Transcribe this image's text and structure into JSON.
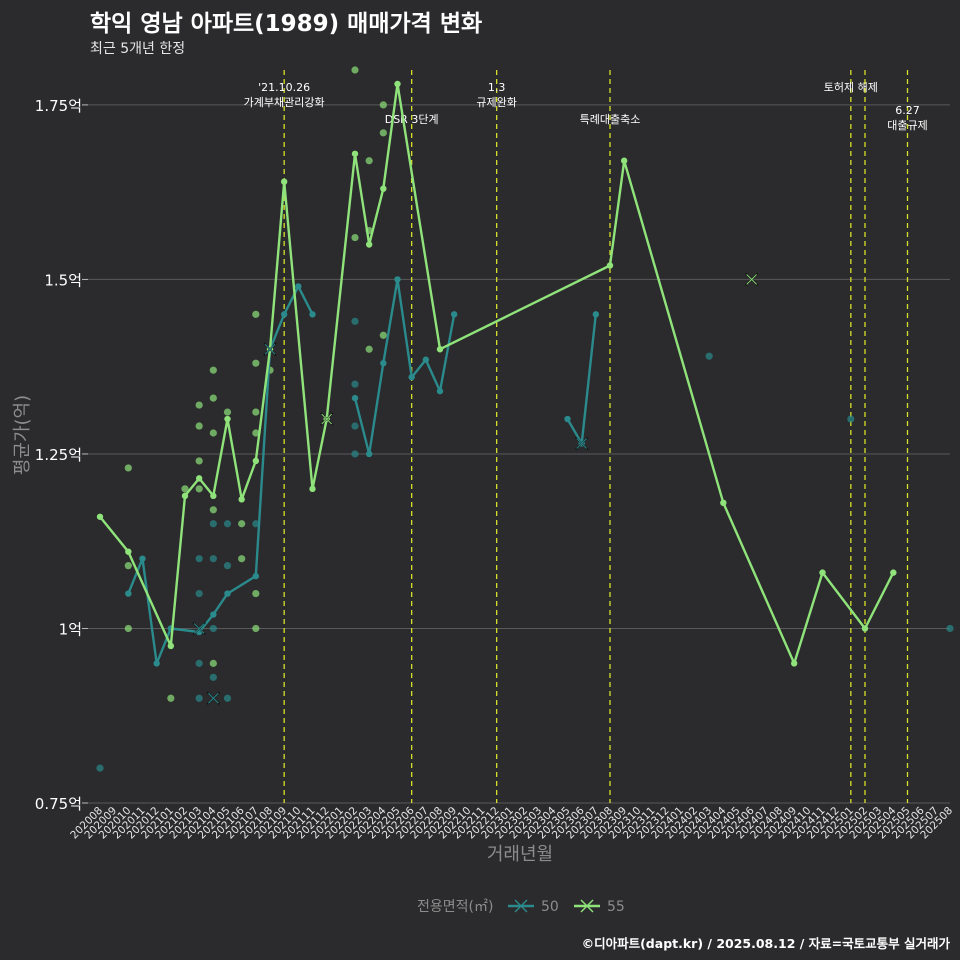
{
  "header": {
    "title": "학익 영남 아파트(1989) 매매가격 변화",
    "subtitle": "최근 5개년 한정"
  },
  "footer": {
    "credit": "©디아파트(dapt.kr) / 2025.08.12 / 자료=국토교통부 실거래가"
  },
  "colors": {
    "background": "#2b2b2d",
    "series_50": "#2a8a8c",
    "series_55": "#8fe37a",
    "event_line": "#d6e02a",
    "grid": "#5a5a5a"
  },
  "chart_data": {
    "type": "line",
    "title": "학익 영남 아파트(1989) 매매가격 변화",
    "subtitle": "최근 5개년 한정",
    "xlabel": "거래년월",
    "ylabel": "평균가(억)",
    "ylim": [
      0.75,
      1.8
    ],
    "yticks": [
      0.75,
      1.0,
      1.25,
      1.5,
      1.75
    ],
    "ytick_labels": [
      "0.75억",
      "1억",
      "1.25억",
      "1.5억",
      "1.75억"
    ],
    "x_labels": [
      "202008",
      "202009",
      "202010",
      "202011",
      "202012",
      "202101",
      "202102",
      "202103",
      "202104",
      "202105",
      "202106",
      "202107",
      "202108",
      "202109",
      "202110",
      "202111",
      "202112",
      "202201",
      "202202",
      "202203",
      "202204",
      "202205",
      "202206",
      "202207",
      "202208",
      "202209",
      "202210",
      "202211",
      "202212",
      "202301",
      "202302",
      "202303",
      "202304",
      "202305",
      "202306",
      "202307",
      "202308",
      "202309",
      "202310",
      "202311",
      "202312",
      "202401",
      "202402",
      "202403",
      "202404",
      "202405",
      "202406",
      "202407",
      "202408",
      "202409",
      "202410",
      "202411",
      "202412",
      "202501",
      "202502",
      "202503",
      "202504",
      "202505",
      "202506",
      "202507",
      "202508"
    ],
    "legend": {
      "title": "전용면적(㎡)",
      "position": "bottom"
    },
    "series": [
      {
        "name": "50",
        "points": [
          {
            "x": 3,
            "y": 1.05
          },
          {
            "x": 4,
            "y": 1.1
          },
          {
            "x": 5,
            "y": 0.95
          },
          {
            "x": 6,
            "y": 1.0
          },
          {
            "x": 8,
            "y": 0.995
          },
          {
            "x": 9,
            "y": 1.02
          },
          {
            "x": 10,
            "y": 1.05
          },
          {
            "x": 12,
            "y": 1.075
          },
          {
            "x": 13,
            "y": 1.4
          },
          {
            "x": 14,
            "y": 1.45
          },
          {
            "x": 15,
            "y": 1.49
          },
          {
            "x": 16,
            "y": 1.45
          },
          null,
          {
            "x": 19,
            "y": 1.33
          },
          {
            "x": 20,
            "y": 1.25
          },
          {
            "x": 21,
            "y": 1.38
          },
          {
            "x": 22,
            "y": 1.5
          },
          {
            "x": 23,
            "y": 1.36
          },
          {
            "x": 24,
            "y": 1.385
          },
          {
            "x": 25,
            "y": 1.34
          },
          {
            "x": 26,
            "y": 1.45
          },
          null,
          {
            "x": 34,
            "y": 1.3
          },
          {
            "x": 35,
            "y": 1.265
          },
          {
            "x": 36,
            "y": 1.45
          }
        ]
      },
      {
        "name": "55",
        "points": [
          {
            "x": 1,
            "y": 1.16
          },
          {
            "x": 3,
            "y": 1.11
          },
          {
            "x": 6,
            "y": 0.975
          },
          {
            "x": 7,
            "y": 1.19
          },
          {
            "x": 8,
            "y": 1.215
          },
          {
            "x": 9,
            "y": 1.19
          },
          {
            "x": 10,
            "y": 1.3
          },
          {
            "x": 11,
            "y": 1.185
          },
          {
            "x": 12,
            "y": 1.24
          },
          {
            "x": 13,
            "y": 1.4
          },
          {
            "x": 14,
            "y": 1.64
          },
          {
            "x": 16,
            "y": 1.2
          },
          {
            "x": 17,
            "y": 1.3
          },
          {
            "x": 19,
            "y": 1.68
          },
          {
            "x": 20,
            "y": 1.55
          },
          {
            "x": 21,
            "y": 1.63
          },
          {
            "x": 22,
            "y": 1.78
          },
          {
            "x": 25,
            "y": 1.4
          },
          {
            "x": 37,
            "y": 1.52
          },
          {
            "x": 38,
            "y": 1.67
          },
          {
            "x": 45,
            "y": 1.18
          },
          {
            "x": 50,
            "y": 0.95
          },
          {
            "x": 52,
            "y": 1.08
          },
          {
            "x": 55,
            "y": 1.0
          },
          {
            "x": 57,
            "y": 1.08
          }
        ]
      }
    ],
    "single_trade_markers": [
      {
        "series": "50",
        "x": 8,
        "y": 1.0
      },
      {
        "series": "50",
        "x": 9,
        "y": 0.9
      },
      {
        "series": "50",
        "x": 13,
        "y": 1.4
      },
      {
        "series": "50",
        "x": 35,
        "y": 1.265
      },
      {
        "series": "55",
        "x": 17,
        "y": 1.3
      },
      {
        "series": "55",
        "x": 47,
        "y": 1.5
      }
    ],
    "scatter": [
      {
        "series": "50",
        "x": 1,
        "y": 0.8
      },
      {
        "series": "55",
        "x": 3,
        "y": 1.23
      },
      {
        "series": "55",
        "x": 3,
        "y": 1.09
      },
      {
        "series": "55",
        "x": 3,
        "y": 1.0
      },
      {
        "series": "55",
        "x": 6,
        "y": 0.9
      },
      {
        "series": "55",
        "x": 7,
        "y": 1.2
      },
      {
        "series": "55",
        "x": 8,
        "y": 1.32
      },
      {
        "series": "55",
        "x": 8,
        "y": 1.29
      },
      {
        "series": "55",
        "x": 8,
        "y": 1.24
      },
      {
        "series": "55",
        "x": 8,
        "y": 1.2
      },
      {
        "series": "50",
        "x": 8,
        "y": 1.1
      },
      {
        "series": "50",
        "x": 8,
        "y": 1.05
      },
      {
        "series": "50",
        "x": 8,
        "y": 0.95
      },
      {
        "series": "50",
        "x": 8,
        "y": 0.9
      },
      {
        "series": "55",
        "x": 9,
        "y": 1.37
      },
      {
        "series": "55",
        "x": 9,
        "y": 1.33
      },
      {
        "series": "55",
        "x": 9,
        "y": 1.28
      },
      {
        "series": "55",
        "x": 9,
        "y": 1.17
      },
      {
        "series": "50",
        "x": 9,
        "y": 1.15
      },
      {
        "series": "50",
        "x": 9,
        "y": 1.1
      },
      {
        "series": "50",
        "x": 9,
        "y": 1.0
      },
      {
        "series": "55",
        "x": 9,
        "y": 0.95
      },
      {
        "series": "50",
        "x": 9,
        "y": 0.93
      },
      {
        "series": "55",
        "x": 10,
        "y": 1.31
      },
      {
        "series": "50",
        "x": 10,
        "y": 1.15
      },
      {
        "series": "50",
        "x": 10,
        "y": 1.09
      },
      {
        "series": "50",
        "x": 10,
        "y": 0.9
      },
      {
        "series": "55",
        "x": 11,
        "y": 1.15
      },
      {
        "series": "55",
        "x": 11,
        "y": 1.1
      },
      {
        "series": "55",
        "x": 12,
        "y": 1.45
      },
      {
        "series": "55",
        "x": 12,
        "y": 1.38
      },
      {
        "series": "55",
        "x": 12,
        "y": 1.31
      },
      {
        "series": "55",
        "x": 12,
        "y": 1.28
      },
      {
        "series": "50",
        "x": 12,
        "y": 1.15
      },
      {
        "series": "55",
        "x": 12,
        "y": 1.05
      },
      {
        "series": "55",
        "x": 12,
        "y": 1.0
      },
      {
        "series": "55",
        "x": 13,
        "y": 1.37
      },
      {
        "series": "55",
        "x": 19,
        "y": 1.8
      },
      {
        "series": "55",
        "x": 19,
        "y": 1.56
      },
      {
        "series": "50",
        "x": 19,
        "y": 1.44
      },
      {
        "series": "50",
        "x": 19,
        "y": 1.35
      },
      {
        "series": "50",
        "x": 19,
        "y": 1.29
      },
      {
        "series": "50",
        "x": 19,
        "y": 1.25
      },
      {
        "series": "55",
        "x": 20,
        "y": 1.67
      },
      {
        "series": "55",
        "x": 20,
        "y": 1.57
      },
      {
        "series": "55",
        "x": 20,
        "y": 1.4
      },
      {
        "series": "55",
        "x": 21,
        "y": 1.75
      },
      {
        "series": "55",
        "x": 21,
        "y": 1.71
      },
      {
        "series": "55",
        "x": 21,
        "y": 1.42
      },
      {
        "series": "50",
        "x": 44,
        "y": 1.39
      },
      {
        "series": "50",
        "x": 54,
        "y": 1.3
      },
      {
        "series": "50",
        "x": 61,
        "y": 1.0
      }
    ],
    "events": [
      {
        "x": 14,
        "label": [
          "'21.10.26",
          "가계부채관리강화"
        ],
        "row": 0
      },
      {
        "x": 23,
        "label": [
          "DSR 3단계"
        ],
        "row": 1
      },
      {
        "x": 29,
        "label": [
          "1.3",
          "규제완화"
        ],
        "row": 0
      },
      {
        "x": 37,
        "label": [
          "특례대출축소"
        ],
        "row": 1
      },
      {
        "x": 54,
        "label": [
          "토허제 해제"
        ],
        "row": 0
      },
      {
        "x": 55,
        "label": [],
        "row": 0
      },
      {
        "x": 58,
        "label": [
          "6.27",
          "대출규제"
        ],
        "row": 2
      }
    ]
  }
}
